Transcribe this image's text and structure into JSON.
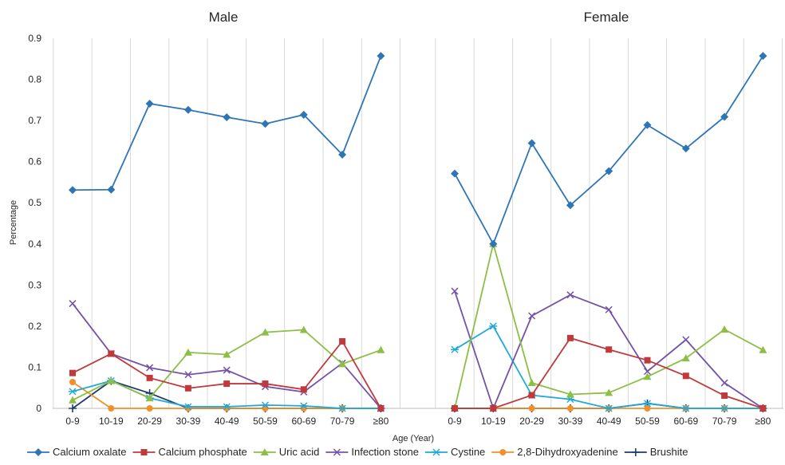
{
  "chart_data": {
    "type": "line",
    "categories": [
      "0-9",
      "10-19",
      "20-29",
      "30-39",
      "40-49",
      "50-59",
      "60-69",
      "70-79",
      "≥80"
    ],
    "ylabel": "Percentage",
    "xlabel": "Age (Year)",
    "ylim": [
      0,
      0.9
    ],
    "yticks": [
      "0",
      "0.1",
      "0.2",
      "0.3",
      "0.4",
      "0.5",
      "0.6",
      "0.7",
      "0.8",
      "0.9"
    ],
    "grid": "vertical",
    "legend_position": "bottom",
    "series_styles": [
      {
        "name": "Calcium oxalate",
        "color": "#2E75B6",
        "marker": "diamond"
      },
      {
        "name": "Calcium phosphate",
        "color": "#C0393B",
        "marker": "square"
      },
      {
        "name": "Uric acid",
        "color": "#8CBF45",
        "marker": "triangle"
      },
      {
        "name": "Infection stone",
        "color": "#7452A8",
        "marker": "x"
      },
      {
        "name": "Cystine",
        "color": "#1FA9D8",
        "marker": "asterisk"
      },
      {
        "name": "2,8-Dihydroxyadenine",
        "color": "#F28E2B",
        "marker": "circle"
      },
      {
        "name": "Brushite",
        "color": "#1F3A6B",
        "marker": "plus"
      }
    ],
    "panels": [
      {
        "title": "Male",
        "series": [
          {
            "name": "Calcium oxalate",
            "values": [
              0.531,
              0.532,
              0.741,
              0.726,
              0.708,
              0.692,
              0.714,
              0.617,
              0.857
            ]
          },
          {
            "name": "Calcium phosphate",
            "values": [
              0.086,
              0.133,
              0.074,
              0.049,
              0.06,
              0.06,
              0.046,
              0.163,
              0.0
            ]
          },
          {
            "name": "Uric acid",
            "values": [
              0.02,
              0.067,
              0.025,
              0.136,
              0.131,
              0.185,
              0.191,
              0.108,
              0.142
            ]
          },
          {
            "name": "Infection stone",
            "values": [
              0.255,
              0.133,
              0.099,
              0.082,
              0.093,
              0.053,
              0.04,
              0.11,
              0.0
            ]
          },
          {
            "name": "Cystine",
            "values": [
              0.041,
              0.067,
              0.025,
              0.004,
              0.004,
              0.008,
              0.006,
              0.0,
              0.0
            ]
          },
          {
            "name": "2,8-Dihydroxyadenine",
            "values": [
              0.064,
              0.0,
              0.0,
              0.0,
              0.0,
              0.0,
              0.0,
              0.0,
              0.0
            ]
          },
          {
            "name": "Brushite",
            "values": [
              0.0,
              0.067,
              0.037,
              0.0,
              0.0,
              0.0,
              0.0,
              0.0,
              0.0
            ]
          }
        ]
      },
      {
        "title": "Female",
        "series": [
          {
            "name": "Calcium oxalate",
            "values": [
              0.571,
              0.4,
              0.645,
              0.494,
              0.577,
              0.689,
              0.632,
              0.709,
              0.857
            ]
          },
          {
            "name": "Calcium phosphate",
            "values": [
              0.0,
              0.0,
              0.032,
              0.171,
              0.143,
              0.117,
              0.079,
              0.031,
              0.0
            ]
          },
          {
            "name": "Uric acid",
            "values": [
              0.0,
              0.4,
              0.062,
              0.034,
              0.038,
              0.077,
              0.122,
              0.192,
              0.142
            ]
          },
          {
            "name": "Infection stone",
            "values": [
              0.285,
              0.0,
              0.225,
              0.276,
              0.24,
              0.09,
              0.167,
              0.062,
              0.0
            ]
          },
          {
            "name": "Cystine",
            "values": [
              0.143,
              0.2,
              0.032,
              0.022,
              0.0,
              0.012,
              0.0,
              0.0,
              0.0
            ]
          },
          {
            "name": "2,8-Dihydroxyadenine",
            "values": [
              0.0,
              0.0,
              0.0,
              0.0,
              0.0,
              0.0,
              0.0,
              0.0,
              0.0
            ]
          },
          {
            "name": "Brushite",
            "values": [
              0.0,
              0.0,
              0.0,
              0.0,
              0.0,
              0.012,
              0.0,
              0.0,
              0.0
            ]
          }
        ]
      }
    ]
  }
}
